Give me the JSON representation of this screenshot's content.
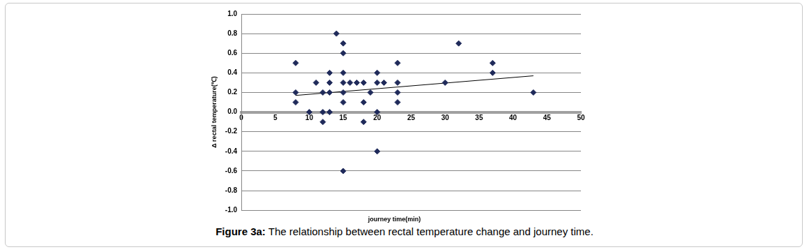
{
  "chart_data": {
    "type": "scatter",
    "title": "Figure 3a: The relationship between rectal temperature change and journey time.",
    "x_label": "journey time(min)",
    "y_label": "Δ rectal temperature(℃)",
    "series": [
      {
        "type": "scatter",
        "color": "#1f2a5a",
        "marker": "diamond",
        "x": [
          8,
          8,
          8,
          10,
          11,
          12,
          12,
          12,
          13,
          13,
          13,
          13,
          14,
          15,
          15,
          15,
          15,
          15,
          15,
          15,
          16,
          17,
          18,
          18,
          18,
          19,
          20,
          20,
          20,
          20,
          21,
          23,
          23,
          23,
          23,
          30,
          32,
          37,
          37,
          43
        ],
        "values": [
          0.5,
          0.2,
          0.1,
          0.0,
          0.3,
          0.2,
          0.0,
          -0.1,
          0.4,
          0.3,
          0.2,
          0.0,
          0.8,
          0.7,
          0.6,
          0.4,
          0.3,
          0.2,
          0.1,
          -0.6,
          0.3,
          0.3,
          0.3,
          0.1,
          -0.1,
          0.2,
          0.4,
          0.3,
          0.0,
          -0.4,
          0.3,
          0.5,
          0.3,
          0.2,
          0.1,
          0.3,
          0.7,
          0.5,
          0.4,
          0.2
        ]
      },
      {
        "type": "line",
        "color": "#000000",
        "line_style": "solid",
        "x": [
          8,
          43
        ],
        "values": [
          0.17,
          0.37
        ]
      }
    ],
    "xlim": [
      0,
      50
    ],
    "xticks": [
      0,
      5,
      10,
      15,
      20,
      25,
      30,
      35,
      40,
      45,
      50
    ],
    "ylim": [
      -1.0,
      1.0
    ],
    "yticks": [
      {
        "value": -1.0,
        "label": "-1.0"
      },
      -0.8,
      -0.6,
      -0.4,
      -0.2,
      {
        "value": 0,
        "label": "0.0"
      },
      0.2,
      0.4,
      0.6,
      0.8,
      {
        "value": 1.0,
        "label": "1.0"
      }
    ],
    "grid": true
  }
}
